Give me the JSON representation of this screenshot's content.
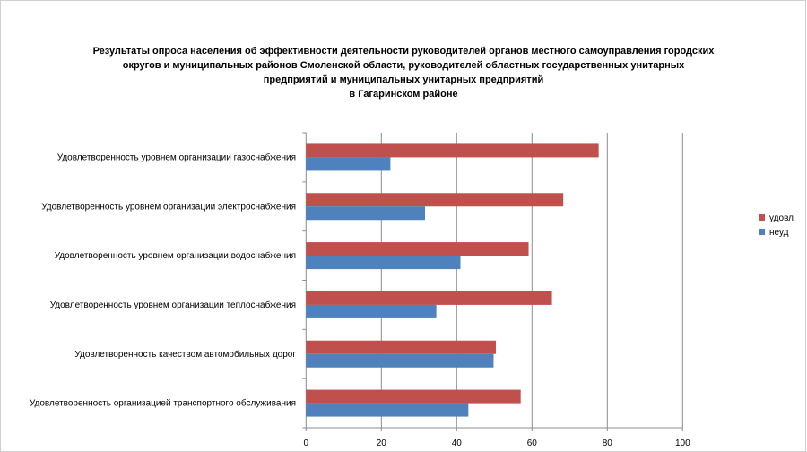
{
  "chart_data": {
    "type": "bar",
    "orientation": "horizontal",
    "title": "Результаты опроса населения об эффективности деятельности руководителей органов местного самоуправления городских округов и муниципальных районов Смоленской области, руководителей областных государственных унитарных предприятий и муниципальных унитарных предприятий в Гагаринском районе",
    "title_lines": [
      "Результаты опроса населения об эффективности деятельности руководителей органов местного самоуправления городских",
      "округов и муниципальных районов Смоленской области, руководителей областных государственных унитарных",
      "предприятий и муниципальных унитарных предприятий",
      "в Гагаринском районе"
    ],
    "categories": [
      "Удовлетворенность уровнем организации газоснабжения",
      "Удовлетворенность уровнем организации электроснабжения",
      "Удовлетворенность уровнем организации водоснабжения",
      "Удовлетворенность уровнем организации теплоснабжения",
      "Удовлетворенность качеством автомобильных дорог",
      "Удовлетворенность организацией транспортного обслуживания"
    ],
    "series": [
      {
        "name": "удовл",
        "color": "#c0504d",
        "values": [
          77.7,
          68.3,
          59.1,
          65.3,
          50.4,
          57.0
        ]
      },
      {
        "name": "неуд",
        "color": "#4f81bd",
        "values": [
          22.4,
          31.6,
          41.0,
          34.6,
          49.8,
          43.1
        ]
      }
    ],
    "xlim": [
      0,
      100
    ],
    "xticks": [
      "0",
      "20",
      "40",
      "60",
      "80",
      "100"
    ],
    "grid": true,
    "legend": "right"
  }
}
